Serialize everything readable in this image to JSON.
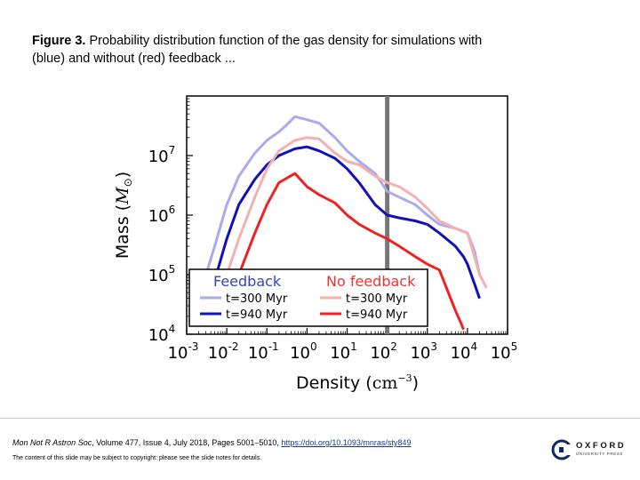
{
  "caption": {
    "label": "Figure 3.",
    "text": " Probability distribution function of the gas density for simulations with (blue) and without (red) feedback ..."
  },
  "footer": {
    "journal": "Mon Not R Astron Soc",
    "details": ", Volume 477, Issue 4, July 2018, Pages 5001–5010, ",
    "doi": "https://doi.org/10.1093/mnras/sty849",
    "copyright": "The content of this slide may be subject to copyright: please see the slide notes for details.",
    "publisher": "OXFORD",
    "publisher_sub": "UNIVERSITY PRESS"
  },
  "chart_data": {
    "type": "line",
    "xlabel": "Density",
    "xlabel_unit": "cm",
    "xlabel_exp": "−3",
    "ylabel": "Mass",
    "ylabel_unit": "M",
    "x_scale": "log",
    "y_scale": "log",
    "xlim": [
      0.001,
      100000
    ],
    "ylim": [
      10000,
      100000000
    ],
    "x_ticks": [
      {
        "base": "10",
        "exp": "-3",
        "v": 0.001
      },
      {
        "base": "10",
        "exp": "-2",
        "v": 0.01
      },
      {
        "base": "10",
        "exp": "-1",
        "v": 0.1
      },
      {
        "base": "10",
        "exp": "0",
        "v": 1
      },
      {
        "base": "10",
        "exp": "1",
        "v": 10
      },
      {
        "base": "10",
        "exp": "2",
        "v": 100
      },
      {
        "base": "10",
        "exp": "3",
        "v": 1000
      },
      {
        "base": "10",
        "exp": "4",
        "v": 10000
      },
      {
        "base": "10",
        "exp": "5",
        "v": 100000
      }
    ],
    "y_ticks": [
      {
        "base": "10",
        "exp": "4",
        "v": 10000
      },
      {
        "base": "10",
        "exp": "5",
        "v": 100000
      },
      {
        "base": "10",
        "exp": "6",
        "v": 1000000
      },
      {
        "base": "10",
        "exp": "7",
        "v": 10000000
      }
    ],
    "vline_x": 100,
    "vline_color": "#777777",
    "legend": {
      "placement": "bottom-left",
      "col1_title": "Feedback",
      "col2_title": "No feedback",
      "title1_color": "#3344bb",
      "title2_color": "#ee3333"
    },
    "series": [
      {
        "name": "t=300 Myr",
        "group": "Feedback",
        "color": "#aaaaee",
        "x": [
          0.002,
          0.005,
          0.01,
          0.02,
          0.05,
          0.1,
          0.2,
          0.3,
          0.5,
          1,
          2,
          5,
          10,
          20,
          50,
          100,
          200,
          500,
          1000,
          2000,
          5000,
          10000,
          15000,
          20000
        ],
        "y": [
          40000,
          300000,
          1500000,
          4500000,
          11000000,
          18000000,
          25000000,
          32000000,
          45000000,
          40000000,
          35000000,
          20000000,
          12000000,
          8000000,
          5000000,
          2500000,
          2000000,
          1500000,
          1000000,
          700000,
          600000,
          500000,
          250000,
          100000
        ]
      },
      {
        "name": "t=940 Myr",
        "group": "Feedback",
        "color": "#1111bb",
        "x": [
          0.003,
          0.005,
          0.01,
          0.02,
          0.05,
          0.1,
          0.2,
          0.5,
          1,
          2,
          5,
          10,
          20,
          50,
          100,
          200,
          500,
          1000,
          2000,
          5000,
          8000,
          10000,
          15000,
          20000
        ],
        "y": [
          30000,
          80000,
          400000,
          1500000,
          4000000,
          7000000,
          10000000,
          13000000,
          14000000,
          12000000,
          9000000,
          6000000,
          3500000,
          1500000,
          1000000,
          900000,
          800000,
          700000,
          500000,
          300000,
          200000,
          150000,
          70000,
          40000
        ]
      },
      {
        "name": "t=300 Myr",
        "group": "No feedback",
        "color": "#f4b0b0",
        "x": [
          0.005,
          0.01,
          0.02,
          0.05,
          0.1,
          0.2,
          0.5,
          1,
          2,
          5,
          10,
          20,
          50,
          100,
          200,
          500,
          1000,
          2000,
          5000,
          10000,
          15000,
          20000,
          30000
        ],
        "y": [
          30000,
          100000,
          400000,
          2000000,
          6000000,
          12000000,
          18000000,
          20000000,
          19000000,
          11000000,
          8000000,
          7000000,
          4500000,
          3500000,
          3000000,
          2000000,
          1300000,
          800000,
          600000,
          500000,
          200000,
          100000,
          60000
        ]
      },
      {
        "name": "t=940 Myr",
        "group": "No feedback",
        "color": "#ee2222",
        "x": [
          0.01,
          0.02,
          0.05,
          0.1,
          0.2,
          0.5,
          1,
          2,
          5,
          10,
          20,
          50,
          100,
          200,
          500,
          1000,
          2000,
          3000,
          5000,
          7000,
          8000
        ],
        "y": [
          30000,
          100000,
          500000,
          1500000,
          3500000,
          5000000,
          3000000,
          2200000,
          1600000,
          1000000,
          700000,
          500000,
          400000,
          300000,
          200000,
          150000,
          120000,
          60000,
          25000,
          15000,
          12000
        ]
      }
    ]
  }
}
